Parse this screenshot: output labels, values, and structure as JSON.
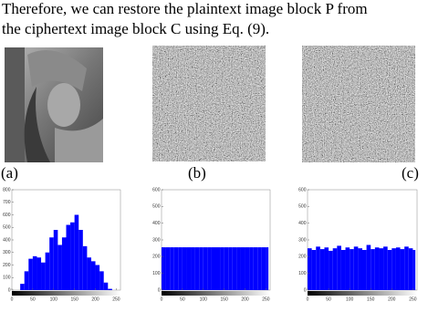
{
  "text": {
    "lines": [
      "Therefore, we can restore the plaintext image block P from",
      "the ciphertext image block C using Eq. (9)."
    ]
  },
  "figures": [
    {
      "label": "(a)",
      "chart_data": {
        "type": "histogram",
        "color": "#0000ff",
        "bins": [
          0,
          10,
          20,
          30,
          40,
          50,
          60,
          70,
          80,
          90,
          100,
          110,
          120,
          130,
          140,
          150,
          160,
          170,
          180,
          190,
          200,
          210,
          220,
          230,
          240,
          250,
          256
        ],
        "counts": [
          0,
          0,
          50,
          150,
          250,
          270,
          260,
          220,
          300,
          420,
          480,
          360,
          420,
          520,
          540,
          600,
          480,
          350,
          260,
          230,
          200,
          150,
          60,
          10,
          0,
          0
        ],
        "xlim": [
          0,
          260
        ],
        "ylim": [
          0,
          800
        ],
        "xticks": [
          0,
          50,
          100,
          150,
          200,
          250
        ],
        "yticks": [
          0,
          100,
          200,
          300,
          400,
          500,
          600,
          700,
          800
        ]
      }
    },
    {
      "label": "(b)",
      "chart_data": {
        "type": "histogram",
        "color": "#0000ff",
        "bins": [
          0,
          10,
          20,
          30,
          40,
          50,
          60,
          70,
          80,
          90,
          100,
          110,
          120,
          130,
          140,
          150,
          160,
          170,
          180,
          190,
          200,
          210,
          220,
          230,
          240,
          250,
          256
        ],
        "counts": [
          256,
          256,
          256,
          256,
          256,
          256,
          256,
          256,
          256,
          256,
          256,
          256,
          256,
          256,
          256,
          256,
          256,
          256,
          256,
          256,
          256,
          256,
          256,
          256,
          256,
          256
        ],
        "xlim": [
          0,
          260
        ],
        "ylim": [
          0,
          600
        ],
        "xticks": [
          0,
          50,
          100,
          150,
          200,
          250
        ],
        "yticks": [
          0,
          100,
          200,
          300,
          400,
          500,
          600
        ]
      }
    },
    {
      "label": "(c)",
      "chart_data": {
        "type": "histogram",
        "color": "#0000ff",
        "bins": [
          0,
          10,
          20,
          30,
          40,
          50,
          60,
          70,
          80,
          90,
          100,
          110,
          120,
          130,
          140,
          150,
          160,
          170,
          180,
          190,
          200,
          210,
          220,
          230,
          240,
          250,
          256
        ],
        "counts": [
          250,
          240,
          260,
          245,
          255,
          235,
          250,
          265,
          240,
          255,
          245,
          260,
          250,
          240,
          270,
          245,
          255,
          250,
          260,
          240,
          250,
          255,
          245,
          260,
          250,
          240
        ],
        "xlim": [
          0,
          260
        ],
        "ylim": [
          0,
          600
        ],
        "xticks": [
          0,
          50,
          100,
          150,
          200,
          250
        ],
        "yticks": [
          0,
          100,
          200,
          300,
          400,
          500,
          600
        ]
      }
    }
  ]
}
